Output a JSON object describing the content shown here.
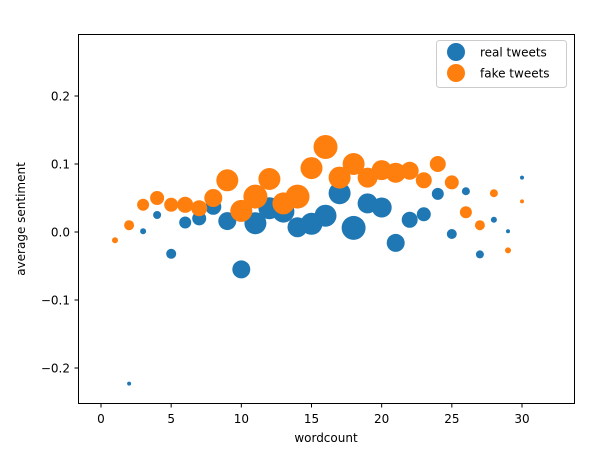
{
  "chart_data": {
    "type": "scatter",
    "title": "",
    "xlabel": "wordcount",
    "ylabel": "average sentiment",
    "xlim": [
      -1.6,
      33.6
    ],
    "ylim": [
      -0.25,
      0.29
    ],
    "xticks": [
      0,
      5,
      10,
      15,
      20,
      25,
      30
    ],
    "yticks": [
      -0.2,
      -0.1,
      0.0,
      0.1,
      0.2
    ],
    "ytick_labels": [
      "−0.2",
      "−0.1",
      "0.0",
      "0.1",
      "0.2"
    ],
    "xtick_labels": [
      "0",
      "5",
      "10",
      "15",
      "20",
      "25",
      "30"
    ],
    "grid": false,
    "legend_position": "upper right",
    "series": [
      {
        "name": "real tweets",
        "color": "#1f77b4",
        "points": [
          {
            "x": 2,
            "y": -0.223,
            "r": 2
          },
          {
            "x": 3,
            "y": 0.001,
            "r": 3
          },
          {
            "x": 4,
            "y": 0.025,
            "r": 4
          },
          {
            "x": 5,
            "y": -0.032,
            "r": 5
          },
          {
            "x": 6,
            "y": 0.014,
            "r": 6
          },
          {
            "x": 7,
            "y": 0.02,
            "r": 7
          },
          {
            "x": 8,
            "y": 0.037,
            "r": 8
          },
          {
            "x": 9,
            "y": 0.016,
            "r": 9
          },
          {
            "x": 10,
            "y": -0.055,
            "r": 9
          },
          {
            "x": 11,
            "y": 0.013,
            "r": 11
          },
          {
            "x": 12,
            "y": 0.035,
            "r": 11
          },
          {
            "x": 13,
            "y": 0.03,
            "r": 11
          },
          {
            "x": 14,
            "y": 0.007,
            "r": 10
          },
          {
            "x": 15,
            "y": 0.012,
            "r": 11
          },
          {
            "x": 16,
            "y": 0.024,
            "r": 11
          },
          {
            "x": 17,
            "y": 0.057,
            "r": 11
          },
          {
            "x": 18,
            "y": 0.006,
            "r": 12
          },
          {
            "x": 19,
            "y": 0.042,
            "r": 10
          },
          {
            "x": 20,
            "y": 0.036,
            "r": 10
          },
          {
            "x": 21,
            "y": -0.016,
            "r": 9
          },
          {
            "x": 22,
            "y": 0.018,
            "r": 8
          },
          {
            "x": 23,
            "y": 0.026,
            "r": 7
          },
          {
            "x": 24,
            "y": 0.056,
            "r": 6
          },
          {
            "x": 25,
            "y": -0.003,
            "r": 5
          },
          {
            "x": 26,
            "y": 0.06,
            "r": 4
          },
          {
            "x": 27,
            "y": -0.033,
            "r": 4
          },
          {
            "x": 28,
            "y": 0.018,
            "r": 3
          },
          {
            "x": 29,
            "y": 0.001,
            "r": 2
          },
          {
            "x": 30,
            "y": 0.08,
            "r": 2
          }
        ]
      },
      {
        "name": "fake tweets",
        "color": "#ff7f0e",
        "points": [
          {
            "x": 1,
            "y": -0.012,
            "r": 3
          },
          {
            "x": 2,
            "y": 0.01,
            "r": 5
          },
          {
            "x": 3,
            "y": 0.04,
            "r": 6
          },
          {
            "x": 4,
            "y": 0.05,
            "r": 7
          },
          {
            "x": 5,
            "y": 0.04,
            "r": 7
          },
          {
            "x": 6,
            "y": 0.04,
            "r": 8
          },
          {
            "x": 7,
            "y": 0.035,
            "r": 8
          },
          {
            "x": 8,
            "y": 0.05,
            "r": 9
          },
          {
            "x": 9,
            "y": 0.076,
            "r": 11
          },
          {
            "x": 10,
            "y": 0.031,
            "r": 11
          },
          {
            "x": 11,
            "y": 0.052,
            "r": 12
          },
          {
            "x": 12,
            "y": 0.078,
            "r": 11
          },
          {
            "x": 13,
            "y": 0.042,
            "r": 11
          },
          {
            "x": 14,
            "y": 0.052,
            "r": 12
          },
          {
            "x": 15,
            "y": 0.094,
            "r": 11
          },
          {
            "x": 16,
            "y": 0.125,
            "r": 12
          },
          {
            "x": 17,
            "y": 0.08,
            "r": 11
          },
          {
            "x": 18,
            "y": 0.1,
            "r": 11
          },
          {
            "x": 19,
            "y": 0.08,
            "r": 10
          },
          {
            "x": 20,
            "y": 0.091,
            "r": 10
          },
          {
            "x": 21,
            "y": 0.087,
            "r": 10
          },
          {
            "x": 22,
            "y": 0.09,
            "r": 9
          },
          {
            "x": 23,
            "y": 0.076,
            "r": 8
          },
          {
            "x": 24,
            "y": 0.1,
            "r": 8
          },
          {
            "x": 25,
            "y": 0.073,
            "r": 7
          },
          {
            "x": 26,
            "y": 0.029,
            "r": 6
          },
          {
            "x": 27,
            "y": 0.01,
            "r": 5
          },
          {
            "x": 28,
            "y": 0.057,
            "r": 4
          },
          {
            "x": 29,
            "y": -0.027,
            "r": 3
          },
          {
            "x": 30,
            "y": 0.045,
            "r": 2
          }
        ]
      }
    ]
  },
  "legend": {
    "items": [
      {
        "label": "real tweets",
        "color": "#1f77b4"
      },
      {
        "label": "fake tweets",
        "color": "#ff7f0e"
      }
    ]
  },
  "axes": {
    "xlabel": "wordcount",
    "ylabel": "average sentiment"
  }
}
